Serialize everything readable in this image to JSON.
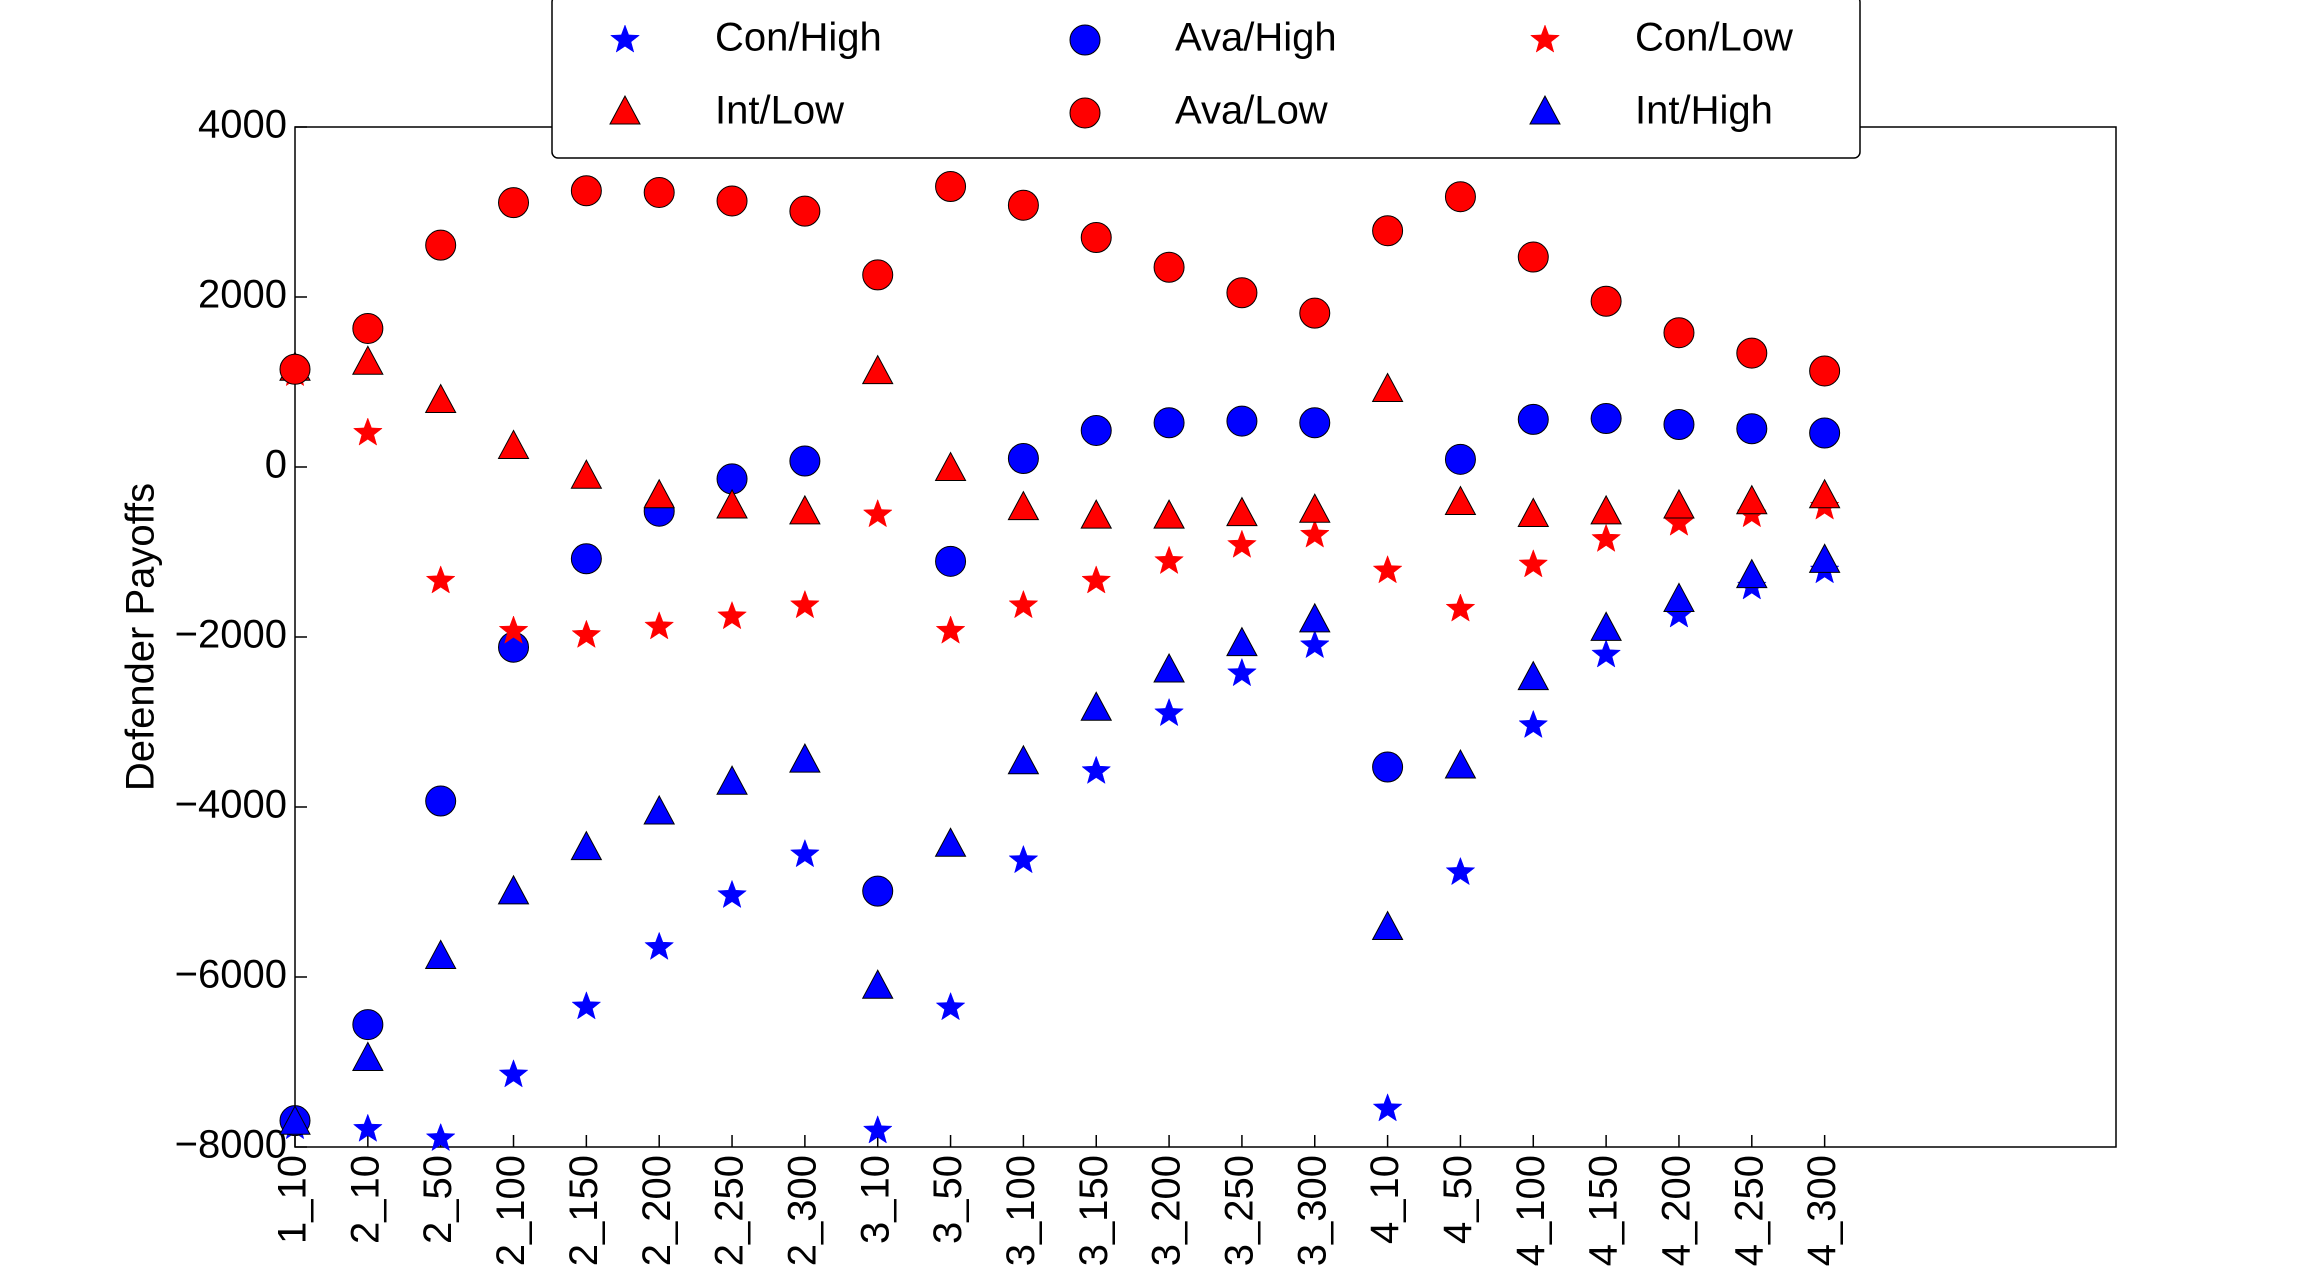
{
  "chart_data": {
    "type": "scatter",
    "y_label": "Defender Payoffs",
    "categories": [
      "1_10",
      "2_10",
      "2_50",
      "2_100",
      "2_150",
      "2_200",
      "2_250",
      "2_300",
      "3_10",
      "3_50",
      "3_100",
      "3_150",
      "3_200",
      "3_250",
      "3_300",
      "4_10",
      "4_50",
      "4_100",
      "4_150",
      "4_200",
      "4_250",
      "4_300"
    ],
    "xlim": [
      0,
      25
    ],
    "ylim": [
      -8000,
      4000
    ],
    "yticks": [
      {
        "value": -8000,
        "label": "−8000"
      },
      {
        "value": -6000,
        "label": "−6000"
      },
      {
        "value": -4000,
        "label": "−4000"
      },
      {
        "value": -2000,
        "label": "−2000"
      },
      0,
      2000,
      4000
    ],
    "legend_position": "upper center",
    "series": [
      {
        "name": "Con/High",
        "color": "#0000ff",
        "marker": "star",
        "values": [
          -7760,
          -7790,
          -7900,
          -7150,
          -6350,
          -5650,
          -5040,
          -4560,
          -7810,
          -6360,
          -4630,
          -3580,
          -2900,
          -2430,
          -2100,
          -7550,
          -4770,
          -3040,
          -2210,
          -1740,
          -1410,
          -1220
        ]
      },
      {
        "name": "Ava/High",
        "color": "#0000ff",
        "marker": "circle",
        "values": [
          -7690,
          -6560,
          -3930,
          -2120,
          -1080,
          -520,
          -140,
          70,
          -4990,
          -1110,
          100,
          430,
          520,
          540,
          520,
          -3530,
          90,
          560,
          570,
          500,
          450,
          400
        ]
      },
      {
        "name": "Con/Low",
        "color": "#ff0000",
        "marker": "star",
        "values": [
          1100,
          400,
          -1340,
          -1930,
          -1980,
          -1880,
          -1760,
          -1630,
          -560,
          -1930,
          -1630,
          -1340,
          -1110,
          -920,
          -800,
          -1220,
          -1670,
          -1150,
          -850,
          -660,
          -560,
          -470
        ]
      },
      {
        "name": "Int/Low",
        "color": "#ff0000",
        "marker": "triangle",
        "values": [
          1150,
          1220,
          770,
          230,
          -120,
          -350,
          -470,
          -540,
          1110,
          -30,
          -490,
          -590,
          -590,
          -560,
          -520,
          900,
          -430,
          -570,
          -540,
          -470,
          -420,
          -350
        ]
      },
      {
        "name": "Ava/Low",
        "color": "#ff0000",
        "marker": "circle",
        "values": [
          1150,
          1630,
          2610,
          3110,
          3250,
          3230,
          3130,
          3010,
          2260,
          3300,
          3080,
          2700,
          2350,
          2050,
          1810,
          2780,
          3180,
          2470,
          1950,
          1580,
          1340,
          1130
        ]
      },
      {
        "name": "Int/High",
        "color": "#0000ff",
        "marker": "triangle",
        "values": [
          -7720,
          -6970,
          -5770,
          -5010,
          -4490,
          -4070,
          -3720,
          -3460,
          -6120,
          -4450,
          -3480,
          -2850,
          -2400,
          -2090,
          -1810,
          -5430,
          -3530,
          -2490,
          -1910,
          -1570,
          -1290,
          -1110
        ]
      }
    ]
  }
}
